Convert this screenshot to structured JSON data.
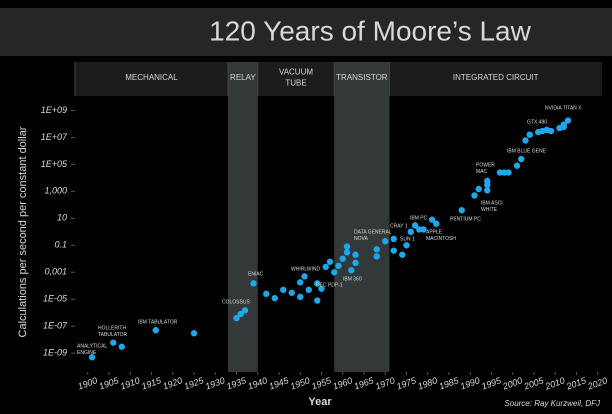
{
  "chart_data": {
    "type": "scatter",
    "title": "120 Years of Moore’s Law",
    "y_label": "Calculations per second per constant dollar",
    "x_label": "Year",
    "source": "Source: Ray Kurzweil, DFJ",
    "log_y": true,
    "color": "#1ea7ea",
    "xlim": [
      1897,
      2021
    ],
    "ylim": [
      4e-11,
      10000000000.0
    ],
    "xticks": [
      1900,
      1905,
      1910,
      1915,
      1920,
      1925,
      1930,
      1935,
      1940,
      1945,
      1950,
      1955,
      1960,
      1965,
      1970,
      1975,
      1980,
      1985,
      1990,
      1995,
      2000,
      2005,
      2010,
      2015,
      2020
    ],
    "yticks": [
      {
        "value": 1000000000.0,
        "label": "1E+09"
      },
      {
        "value": 10000000.0,
        "label": "1E+07"
      },
      {
        "value": 100000.0,
        "label": "1E+05"
      },
      {
        "value": 1000,
        "label": "1,000"
      },
      10,
      0.1,
      {
        "value": 0.001,
        "label": "0,001"
      },
      {
        "value": 1e-05,
        "label": "1E-05"
      },
      {
        "value": 1e-07,
        "label": "1E-07"
      },
      {
        "value": 1e-09,
        "label": "1E-09"
      }
    ],
    "eras": [
      {
        "lines": [
          "MECHANICAL"
        ],
        "start": 1897,
        "end": 1933,
        "shaded": false
      },
      {
        "lines": [
          "RELAY"
        ],
        "start": 1933,
        "end": 1940,
        "shaded": true
      },
      {
        "lines": [
          "VACUUM",
          "TUBE"
        ],
        "start": 1940,
        "end": 1958,
        "shaded": false
      },
      {
        "lines": [
          "TRANSISTOR"
        ],
        "start": 1958,
        "end": 1971,
        "shaded": true
      },
      {
        "lines": [
          "INTEGRATED CIRCUIT"
        ],
        "start": 1971,
        "end": 2021,
        "shaded": false
      }
    ],
    "annotations": [
      {
        "lines": [
          "ANALYTICAL",
          "ENGINE"
        ]
      },
      {
        "lines": [
          "HOLLERITH",
          "TABULATOR"
        ]
      },
      {
        "lines": [
          "IBM TABULATOR"
        ]
      },
      {
        "lines": [
          "COLOSSUS"
        ]
      },
      {
        "lines": [
          "ENIAC"
        ]
      },
      {
        "lines": [
          "WHIRLWIND"
        ]
      },
      {
        "lines": [
          "DEC PDP-1"
        ]
      },
      {
        "lines": [
          "IBM 360"
        ]
      },
      {
        "lines": [
          "DATA GENERAL",
          "NOVA"
        ]
      },
      {
        "lines": [
          "CRAY 1"
        ]
      },
      {
        "lines": [
          "SUN 1"
        ]
      },
      {
        "lines": [
          "IBM PC"
        ]
      },
      {
        "lines": [
          "APPLE",
          "MACINTOSH"
        ]
      },
      {
        "lines": [
          "PENTIUM PC"
        ]
      },
      {
        "lines": [
          "POWER",
          "MAC"
        ]
      },
      {
        "lines": [
          "IBM ASCI",
          "WHITE"
        ]
      },
      {
        "lines": [
          "IBM BLUE GENE"
        ]
      },
      {
        "lines": [
          "GTX 480"
        ]
      },
      {
        "lines": [
          "NVIDIA TITAN X"
        ]
      }
    ],
    "x": [
      1901,
      1906,
      1908,
      1916,
      1925,
      1935,
      1936,
      1937,
      1939,
      1942,
      1944,
      1946,
      1948,
      1950,
      1951,
      1950,
      1952,
      1954,
      1954,
      1955,
      1956,
      1957,
      1958,
      1959,
      1960,
      1961,
      1962,
      1963,
      1963,
      1961,
      1968,
      1968,
      1970,
      1972,
      1972,
      1974,
      1975,
      1976,
      1977,
      1978,
      1979,
      1981,
      1982,
      1988,
      1991,
      1992,
      1994,
      1994,
      1994,
      1997,
      1998,
      1999,
      2001,
      2002,
      2003,
      2004,
      2006,
      2007,
      2008,
      2009,
      2011,
      2012,
      2012,
      2013
    ],
    "values": [
      5e-10,
      6e-09,
      3e-09,
      5e-08,
      3e-08,
      4e-07,
      8e-07,
      1.5e-06,
      0.00015,
      2.5e-05,
      1.2e-05,
      5e-05,
      3e-05,
      1.5e-05,
      0.0005,
      0.00018,
      5e-05,
      0.00015,
      8e-06,
      6e-05,
      0.0025,
      0.006,
      0.001,
      0.003,
      0.01,
      0.03,
      0.0014,
      0.005,
      0.02,
      0.08,
      0.05,
      0.015,
      0.2,
      0.04,
      0.3,
      0.02,
      0.1,
      1,
      3,
      1.5,
      1.5,
      8,
      4,
      40,
      500,
      1500,
      3000,
      1200,
      6000,
      25000,
      25000,
      25000,
      80000,
      250000,
      6000000.0,
      16000000.0,
      25000000.0,
      30000000.0,
      36000000.0,
      30000000.0,
      50000000.0,
      60000000.0,
      90000000.0,
      180000000.0
    ]
  }
}
